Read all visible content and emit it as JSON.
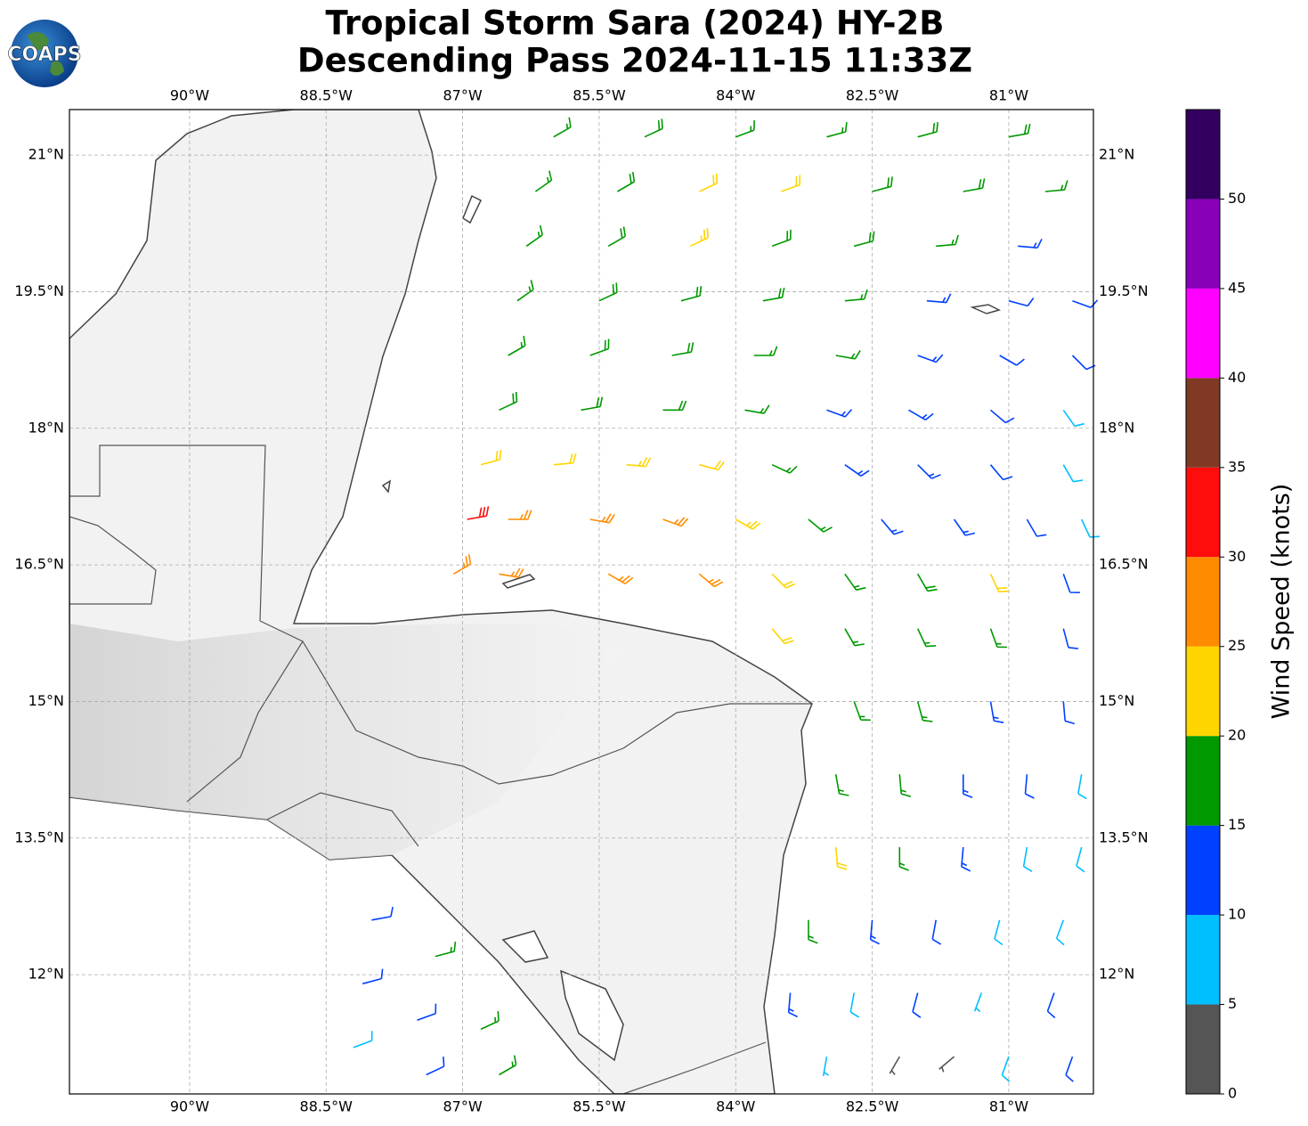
{
  "logo": "COAPS",
  "chart_data": {
    "type": "wind-barbs",
    "title": [
      "Tropical Storm Sara (2024) HY-2B",
      "Descending Pass 2024-11-15 11:33Z"
    ],
    "xlim": [
      -91.32,
      -80.07
    ],
    "ylim": [
      10.69,
      21.5
    ],
    "xticks": [
      {
        "value": -90,
        "label": "90°W"
      },
      {
        "value": -88.5,
        "label": "88.5°W"
      },
      {
        "value": -87,
        "label": "87°W"
      },
      {
        "value": -85.5,
        "label": "85.5°W"
      },
      {
        "value": -84,
        "label": "84°W"
      },
      {
        "value": -82.5,
        "label": "82.5°W"
      },
      {
        "value": -81,
        "label": "81°W"
      }
    ],
    "yticks": [
      {
        "value": 12,
        "label": "12°N"
      },
      {
        "value": 13.5,
        "label": "13.5°N"
      },
      {
        "value": 15,
        "label": "15°N"
      },
      {
        "value": 16.5,
        "label": "16.5°N"
      },
      {
        "value": 18,
        "label": "18°N"
      },
      {
        "value": 19.5,
        "label": "19.5°N"
      },
      {
        "value": 21,
        "label": "21°N"
      }
    ],
    "grid": true,
    "colorbar": {
      "label": "Wind Speed (knots)",
      "bounds": [
        0,
        5,
        10,
        15,
        20,
        25,
        30,
        35,
        40,
        45,
        50,
        55
      ],
      "colors": [
        "#555555",
        "#00bfff",
        "#0040ff",
        "#009900",
        "#ffd500",
        "#ff8c00",
        "#ff0d0d",
        "#803a24",
        "#ff00ff",
        "#8800b8",
        "#330060"
      ],
      "ticks": [
        0,
        5,
        10,
        15,
        20,
        25,
        30,
        35,
        40,
        45,
        50
      ]
    },
    "barbs": [
      {
        "lon": -86,
        "lat": 21.2,
        "speed": 17,
        "dir": 60
      },
      {
        "lon": -85,
        "lat": 21.2,
        "speed": 18,
        "dir": 65
      },
      {
        "lon": -84,
        "lat": 21.2,
        "speed": 17,
        "dir": 70
      },
      {
        "lon": -83,
        "lat": 21.2,
        "speed": 17,
        "dir": 75
      },
      {
        "lon": -82,
        "lat": 21.2,
        "speed": 18,
        "dir": 75
      },
      {
        "lon": -81,
        "lat": 21.2,
        "speed": 18,
        "dir": 80
      },
      {
        "lon": -86.2,
        "lat": 20.6,
        "speed": 17,
        "dir": 55
      },
      {
        "lon": -85.3,
        "lat": 20.6,
        "speed": 19,
        "dir": 60
      },
      {
        "lon": -84.4,
        "lat": 20.6,
        "speed": 21,
        "dir": 65
      },
      {
        "lon": -83.5,
        "lat": 20.6,
        "speed": 22,
        "dir": 70
      },
      {
        "lon": -82.5,
        "lat": 20.6,
        "speed": 18,
        "dir": 75
      },
      {
        "lon": -81.5,
        "lat": 20.6,
        "speed": 18,
        "dir": 80
      },
      {
        "lon": -80.6,
        "lat": 20.6,
        "speed": 17,
        "dir": 85
      },
      {
        "lon": -86.3,
        "lat": 20.0,
        "speed": 16,
        "dir": 55
      },
      {
        "lon": -85.4,
        "lat": 20.0,
        "speed": 18,
        "dir": 60
      },
      {
        "lon": -84.5,
        "lat": 20.0,
        "speed": 23,
        "dir": 65
      },
      {
        "lon": -83.6,
        "lat": 20.0,
        "speed": 19,
        "dir": 70
      },
      {
        "lon": -82.7,
        "lat": 20.0,
        "speed": 18,
        "dir": 75
      },
      {
        "lon": -81.8,
        "lat": 20.0,
        "speed": 17,
        "dir": 85
      },
      {
        "lon": -80.9,
        "lat": 20.0,
        "speed": 13,
        "dir": 95
      },
      {
        "lon": -86.4,
        "lat": 19.4,
        "speed": 17,
        "dir": 55
      },
      {
        "lon": -85.5,
        "lat": 19.4,
        "speed": 18,
        "dir": 65
      },
      {
        "lon": -84.6,
        "lat": 19.4,
        "speed": 19,
        "dir": 75
      },
      {
        "lon": -83.7,
        "lat": 19.4,
        "speed": 18,
        "dir": 80
      },
      {
        "lon": -82.8,
        "lat": 19.4,
        "speed": 17,
        "dir": 85
      },
      {
        "lon": -81.9,
        "lat": 19.4,
        "speed": 14,
        "dir": 95
      },
      {
        "lon": -81,
        "lat": 19.4,
        "speed": 12,
        "dir": 105
      },
      {
        "lon": -80.3,
        "lat": 19.4,
        "speed": 12,
        "dir": 110
      },
      {
        "lon": -86.5,
        "lat": 18.8,
        "speed": 17,
        "dir": 60
      },
      {
        "lon": -85.6,
        "lat": 18.8,
        "speed": 18,
        "dir": 70
      },
      {
        "lon": -84.7,
        "lat": 18.8,
        "speed": 18,
        "dir": 80
      },
      {
        "lon": -83.8,
        "lat": 18.8,
        "speed": 17,
        "dir": 90
      },
      {
        "lon": -82.9,
        "lat": 18.8,
        "speed": 15,
        "dir": 100
      },
      {
        "lon": -82,
        "lat": 18.8,
        "speed": 13,
        "dir": 110
      },
      {
        "lon": -81.1,
        "lat": 18.8,
        "speed": 12,
        "dir": 120
      },
      {
        "lon": -80.3,
        "lat": 18.8,
        "speed": 11,
        "dir": 135
      },
      {
        "lon": -86.6,
        "lat": 18.2,
        "speed": 18,
        "dir": 65
      },
      {
        "lon": -85.7,
        "lat": 18.2,
        "speed": 19,
        "dir": 80
      },
      {
        "lon": -84.8,
        "lat": 18.2,
        "speed": 18,
        "dir": 90
      },
      {
        "lon": -83.9,
        "lat": 18.2,
        "speed": 17,
        "dir": 100
      },
      {
        "lon": -83,
        "lat": 18.2,
        "speed": 14,
        "dir": 110
      },
      {
        "lon": -82.1,
        "lat": 18.2,
        "speed": 13,
        "dir": 120
      },
      {
        "lon": -81.2,
        "lat": 18.2,
        "speed": 12,
        "dir": 130
      },
      {
        "lon": -80.4,
        "lat": 18.2,
        "speed": 9,
        "dir": 145
      },
      {
        "lon": -86.8,
        "lat": 17.6,
        "speed": 22,
        "dir": 75
      },
      {
        "lon": -86,
        "lat": 17.6,
        "speed": 21,
        "dir": 85
      },
      {
        "lon": -85.2,
        "lat": 17.6,
        "speed": 23,
        "dir": 95
      },
      {
        "lon": -84.4,
        "lat": 17.6,
        "speed": 22,
        "dir": 105
      },
      {
        "lon": -83.6,
        "lat": 17.6,
        "speed": 17,
        "dir": 115
      },
      {
        "lon": -82.8,
        "lat": 17.6,
        "speed": 14,
        "dir": 125
      },
      {
        "lon": -82,
        "lat": 17.6,
        "speed": 13,
        "dir": 135
      },
      {
        "lon": -81.2,
        "lat": 17.6,
        "speed": 12,
        "dir": 140
      },
      {
        "lon": -80.4,
        "lat": 17.6,
        "speed": 8,
        "dir": 150
      },
      {
        "lon": -86.95,
        "lat": 17.0,
        "speed": 32,
        "dir": 80
      },
      {
        "lon": -86.5,
        "lat": 17.0,
        "speed": 27,
        "dir": 90
      },
      {
        "lon": -85.6,
        "lat": 17.0,
        "speed": 27,
        "dir": 100
      },
      {
        "lon": -84.8,
        "lat": 17.0,
        "speed": 26,
        "dir": 110
      },
      {
        "lon": -84,
        "lat": 17.0,
        "speed": 23,
        "dir": 120
      },
      {
        "lon": -83.2,
        "lat": 17.0,
        "speed": 17,
        "dir": 130
      },
      {
        "lon": -82.4,
        "lat": 17.0,
        "speed": 14,
        "dir": 140
      },
      {
        "lon": -81.6,
        "lat": 17.0,
        "speed": 13,
        "dir": 145
      },
      {
        "lon": -80.8,
        "lat": 17.0,
        "speed": 12,
        "dir": 150
      },
      {
        "lon": -80.2,
        "lat": 17.0,
        "speed": 8,
        "dir": 155
      },
      {
        "lon": -87.1,
        "lat": 16.4,
        "speed": 26,
        "dir": 60
      },
      {
        "lon": -86.6,
        "lat": 16.4,
        "speed": 27,
        "dir": 100
      },
      {
        "lon": -85.4,
        "lat": 16.4,
        "speed": 27,
        "dir": 120
      },
      {
        "lon": -84.4,
        "lat": 16.4,
        "speed": 26,
        "dir": 130
      },
      {
        "lon": -83.6,
        "lat": 16.4,
        "speed": 22,
        "dir": 135
      },
      {
        "lon": -82.8,
        "lat": 16.4,
        "speed": 17,
        "dir": 145
      },
      {
        "lon": -82,
        "lat": 16.4,
        "speed": 18,
        "dir": 150
      },
      {
        "lon": -81.2,
        "lat": 16.4,
        "speed": 21,
        "dir": 155
      },
      {
        "lon": -80.4,
        "lat": 16.4,
        "speed": 12,
        "dir": 160
      },
      {
        "lon": -83.6,
        "lat": 15.8,
        "speed": 22,
        "dir": 140
      },
      {
        "lon": -82.8,
        "lat": 15.8,
        "speed": 17,
        "dir": 150
      },
      {
        "lon": -82,
        "lat": 15.8,
        "speed": 15,
        "dir": 155
      },
      {
        "lon": -81.2,
        "lat": 15.8,
        "speed": 16,
        "dir": 160
      },
      {
        "lon": -80.4,
        "lat": 15.8,
        "speed": 12,
        "dir": 165
      },
      {
        "lon": -82.7,
        "lat": 15.0,
        "speed": 16,
        "dir": 160
      },
      {
        "lon": -82,
        "lat": 15.0,
        "speed": 17,
        "dir": 165
      },
      {
        "lon": -81.2,
        "lat": 15.0,
        "speed": 14,
        "dir": 170
      },
      {
        "lon": -80.4,
        "lat": 15.0,
        "speed": 12,
        "dir": 175
      },
      {
        "lon": -82.9,
        "lat": 14.2,
        "speed": 17,
        "dir": 170
      },
      {
        "lon": -82.2,
        "lat": 14.2,
        "speed": 16,
        "dir": 175
      },
      {
        "lon": -81.5,
        "lat": 14.2,
        "speed": 14,
        "dir": 180
      },
      {
        "lon": -80.8,
        "lat": 14.2,
        "speed": 10,
        "dir": 185
      },
      {
        "lon": -80.2,
        "lat": 14.2,
        "speed": 9,
        "dir": 190
      },
      {
        "lon": -82.9,
        "lat": 13.4,
        "speed": 22,
        "dir": 175
      },
      {
        "lon": -82.2,
        "lat": 13.4,
        "speed": 16,
        "dir": 180
      },
      {
        "lon": -81.5,
        "lat": 13.4,
        "speed": 13,
        "dir": 185
      },
      {
        "lon": -80.8,
        "lat": 13.4,
        "speed": 8,
        "dir": 190
      },
      {
        "lon": -80.2,
        "lat": 13.4,
        "speed": 8,
        "dir": 195
      },
      {
        "lon": -83.2,
        "lat": 12.6,
        "speed": 17,
        "dir": 180
      },
      {
        "lon": -82.5,
        "lat": 12.6,
        "speed": 14,
        "dir": 185
      },
      {
        "lon": -81.8,
        "lat": 12.6,
        "speed": 12,
        "dir": 190
      },
      {
        "lon": -81.1,
        "lat": 12.6,
        "speed": 8,
        "dir": 195
      },
      {
        "lon": -80.4,
        "lat": 12.6,
        "speed": 8,
        "dir": 200
      },
      {
        "lon": -83.4,
        "lat": 11.8,
        "speed": 13,
        "dir": 185
      },
      {
        "lon": -82.7,
        "lat": 11.8,
        "speed": 9,
        "dir": 190
      },
      {
        "lon": -82,
        "lat": 11.8,
        "speed": 12,
        "dir": 195
      },
      {
        "lon": -81.3,
        "lat": 11.8,
        "speed": 7,
        "dir": 200
      },
      {
        "lon": -80.5,
        "lat": 11.8,
        "speed": 12,
        "dir": 200
      },
      {
        "lon": -83,
        "lat": 11.1,
        "speed": 7,
        "dir": 190
      },
      {
        "lon": -82.2,
        "lat": 11.1,
        "speed": 4,
        "dir": 210
      },
      {
        "lon": -81.6,
        "lat": 11.1,
        "speed": 3,
        "dir": 230
      },
      {
        "lon": -81,
        "lat": 11.1,
        "speed": 8,
        "dir": 200
      },
      {
        "lon": -80.3,
        "lat": 11.1,
        "speed": 12,
        "dir": 200
      },
      {
        "lon": -88,
        "lat": 12.6,
        "speed": 12,
        "dir": 80
      },
      {
        "lon": -87.3,
        "lat": 12.2,
        "speed": 17,
        "dir": 75
      },
      {
        "lon": -88.1,
        "lat": 11.9,
        "speed": 12,
        "dir": 75
      },
      {
        "lon": -87.5,
        "lat": 11.5,
        "speed": 12,
        "dir": 70
      },
      {
        "lon": -86.8,
        "lat": 11.4,
        "speed": 16,
        "dir": 65
      },
      {
        "lon": -88.2,
        "lat": 11.2,
        "speed": 9,
        "dir": 70
      },
      {
        "lon": -87.4,
        "lat": 10.9,
        "speed": 12,
        "dir": 65
      },
      {
        "lon": -86.6,
        "lat": 10.9,
        "speed": 17,
        "dir": 60
      }
    ]
  }
}
